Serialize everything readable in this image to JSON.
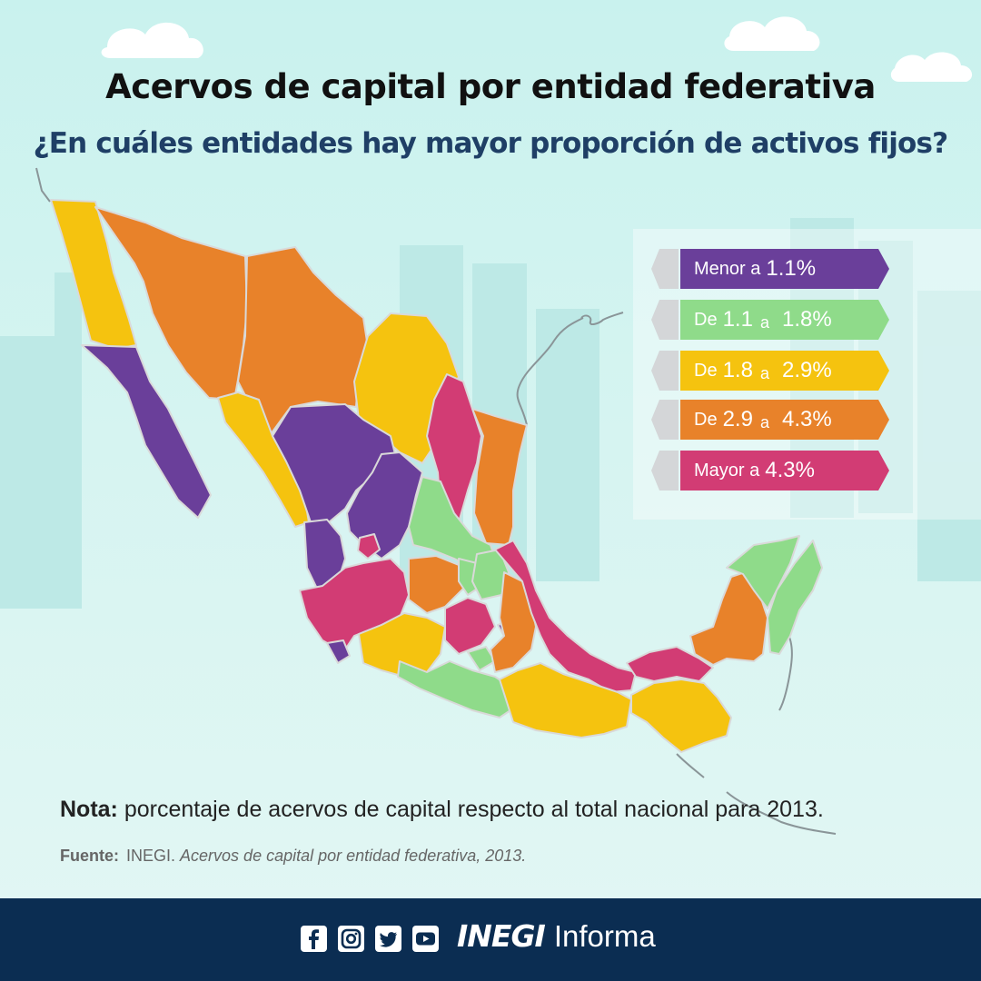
{
  "header": {
    "title": "Acervos de capital por entidad federativa",
    "subtitle": "¿En cuáles entidades hay mayor proporción de activos fijos?"
  },
  "legend": {
    "items": [
      {
        "prefix": "Menor a",
        "low": "1.1%",
        "mid": "",
        "high": "",
        "color": "#6a3f9a"
      },
      {
        "prefix": "De",
        "low": "1.1",
        "mid": "a",
        "high": "1.8%",
        "color": "#8fdb8a"
      },
      {
        "prefix": "De",
        "low": "1.8",
        "mid": "a",
        "high": "2.9%",
        "color": "#f5c30f"
      },
      {
        "prefix": "De",
        "low": "2.9",
        "mid": "a",
        "high": "4.3%",
        "color": "#e8822a"
      },
      {
        "prefix": "Mayor a",
        "low": "4.3%",
        "mid": "",
        "high": "",
        "color": "#d23c74"
      }
    ]
  },
  "map": {
    "region_colors": {
      "menor_1_1": "#6a3f9a",
      "de_1_1_a_1_8": "#8fdb8a",
      "de_1_8_a_2_9": "#f5c30f",
      "de_2_9_a_4_3": "#e8822a",
      "mayor_4_3": "#d23c74"
    },
    "border_color": "#d9d9d9",
    "background_color": "#c9f2ee"
  },
  "note": {
    "label": "Nota:",
    "text": "porcentaje de acervos de capital respecto al total nacional para 2013."
  },
  "source": {
    "label": "Fuente:",
    "org": "INEGI.",
    "title": "Acervos de capital por entidad federativa, 2013."
  },
  "footer": {
    "icons": [
      "facebook-icon",
      "instagram-icon",
      "twitter-icon",
      "youtube-icon"
    ],
    "brand_bold": "INEGI",
    "brand_light": "Informa",
    "background": "#0b2d52"
  }
}
